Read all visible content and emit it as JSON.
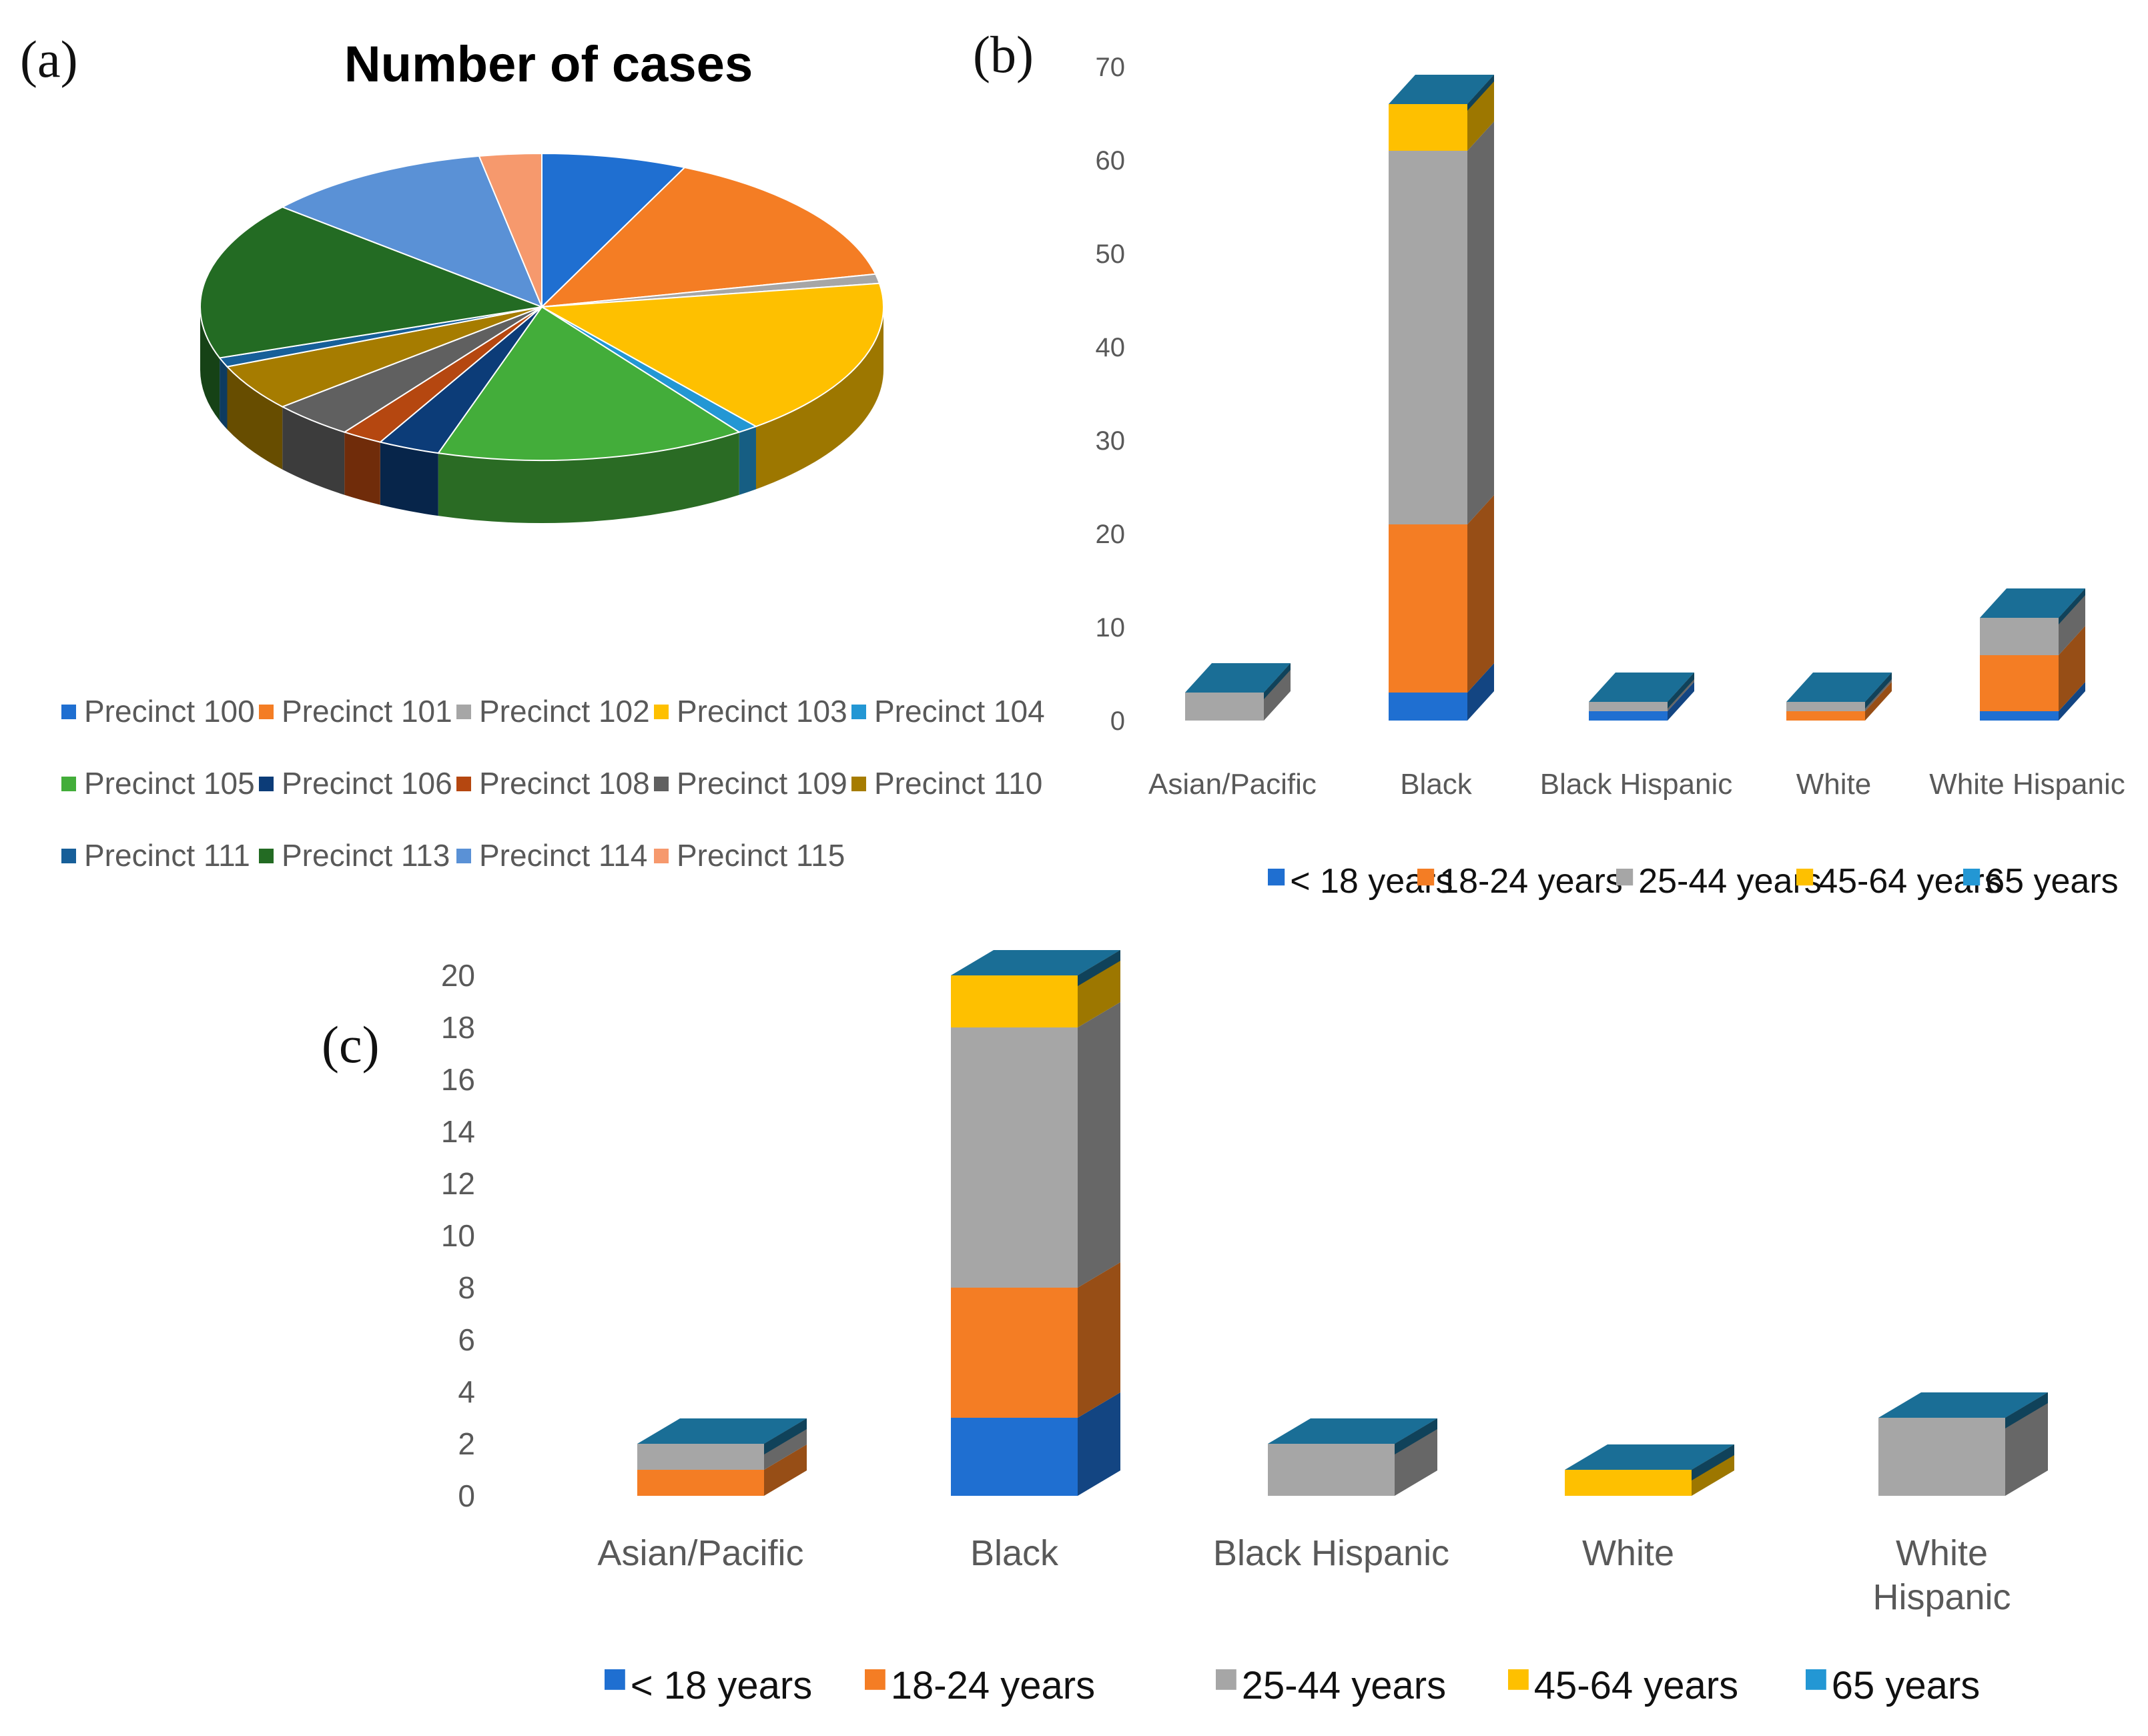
{
  "panel_labels": {
    "a": "(a)",
    "b": "(b)",
    "c": "(c)"
  },
  "colors": {
    "lt18": "#1f6fd1",
    "18_24": "#f47d24",
    "25_44": "#a6a6a6",
    "45_64": "#fec000",
    "65": "#2397d4",
    "cap": "#1a6e96"
  },
  "chart_data": [
    {
      "id": "a",
      "type": "pie",
      "title": "Number of cases",
      "categories": [
        "Precinct 100",
        "Precinct 101",
        "Precinct 102",
        "Precinct 103",
        "Precinct 104",
        "Precinct 105",
        "Precinct 106",
        "Precinct 108",
        "Precinct 109",
        "Precinct 110",
        "Precinct 111",
        "Precinct 113",
        "Precinct 114",
        "Precinct 115"
      ],
      "values": [
        7,
        15,
        1,
        17,
        1,
        15,
        3,
        2,
        4,
        5,
        1,
        17,
        11,
        3
      ],
      "colors": [
        "#1f6fd1",
        "#f47d24",
        "#a6a6a6",
        "#fec000",
        "#2397d4",
        "#43ad3a",
        "#0c3c78",
        "#b54710",
        "#606060",
        "#a67c00",
        "#175f99",
        "#236b23",
        "#5a91d6",
        "#f6996d"
      ],
      "legend_position": "bottom"
    },
    {
      "id": "b",
      "type": "bar",
      "stacked": true,
      "categories": [
        "Asian/Pacific",
        "Black",
        "Black Hispanic",
        "White",
        "White Hispanic"
      ],
      "series": [
        {
          "name": "< 18 years",
          "values": [
            0,
            3,
            1,
            0,
            1
          ]
        },
        {
          "name": "18-24 years",
          "values": [
            0,
            18,
            0,
            1,
            6
          ]
        },
        {
          "name": "25-44 years",
          "values": [
            3,
            40,
            1,
            1,
            4
          ]
        },
        {
          "name": "45-64 years",
          "values": [
            0,
            5,
            0,
            0,
            0
          ]
        },
        {
          "name": "65 years",
          "values": [
            0,
            0,
            0,
            0,
            0
          ]
        }
      ],
      "ylim": [
        0,
        70
      ],
      "yticks": [
        0,
        10,
        20,
        30,
        40,
        50,
        60,
        70
      ],
      "legend_position": "bottom"
    },
    {
      "id": "c",
      "type": "bar",
      "stacked": true,
      "categories": [
        "Asian/Pacific",
        "Black",
        "Black Hispanic",
        "White",
        "White Hispanic"
      ],
      "series": [
        {
          "name": "< 18 years",
          "values": [
            0,
            3,
            0,
            0,
            0
          ]
        },
        {
          "name": "18-24 years",
          "values": [
            1,
            5,
            0,
            0,
            0
          ]
        },
        {
          "name": "25-44 years",
          "values": [
            1,
            10,
            2,
            0,
            3
          ]
        },
        {
          "name": "45-64 years",
          "values": [
            0,
            2,
            0,
            1,
            0
          ]
        },
        {
          "name": "65 years",
          "values": [
            0,
            0,
            0,
            0,
            0
          ]
        }
      ],
      "ylim": [
        0,
        20
      ],
      "yticks": [
        0,
        2,
        4,
        6,
        8,
        10,
        12,
        14,
        16,
        18,
        20
      ],
      "legend_position": "bottom"
    }
  ]
}
